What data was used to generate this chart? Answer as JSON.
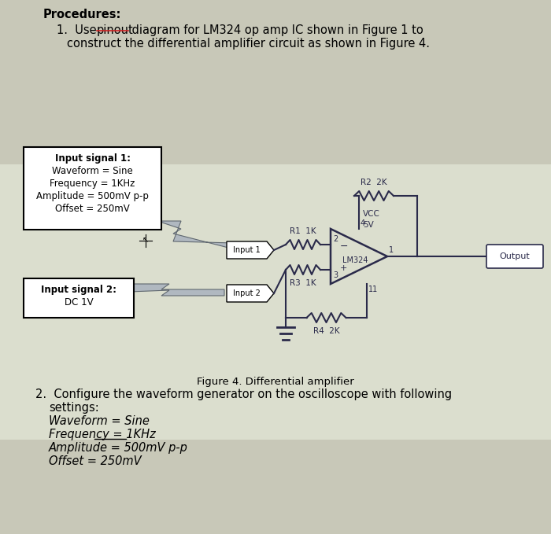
{
  "bg_color": "#c8c8b8",
  "circuit_bg": "#dde8cc",
  "text_color": "#1a1a1a",
  "title": "Procedures:",
  "line1a": "1.  Use ",
  "line1b": "pinout",
  "line1c": " diagram for LM324 op amp IC shown in Figure 1 to",
  "line1d": "      construct the differential amplifier circuit as shown in Figure 4.",
  "box1_title": "Input signal 1:",
  "box1_line1": "Waveform = Sine",
  "box1_line2": "Frequency = 1KHz",
  "box1_line3": "Amplitude = 500mV p-p",
  "box1_line4": "Offset = 250mV",
  "box2_title": "Input signal 2:",
  "box2_line1": "DC 1V",
  "figure_caption": "Figure 4. Differential amplifier",
  "item2_line1": "2.  Configure the waveform generator on the oscilloscope with following",
  "item2_line2": "     settings:",
  "item2_line3": "     Waveform = Sine",
  "item2_line4": "     Frequency = 1KHz",
  "item2_line5": "     Amplitude = 500mV p-p",
  "item2_line6": "     Offset = 250mV"
}
